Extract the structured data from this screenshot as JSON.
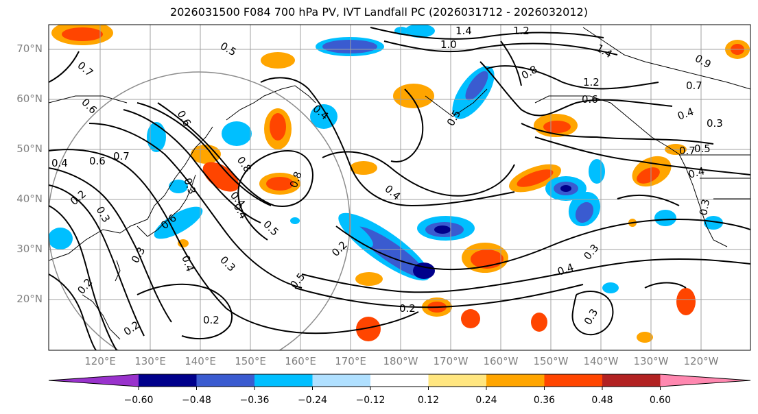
{
  "title": "2026031500 F084 700 hPa PV, IVT Landfall PC (2026031712 - 2026032012)",
  "lat_labels": [
    "70°N",
    "60°N",
    "50°N",
    "40°N",
    "30°N",
    "20°N"
  ],
  "lon_labels": [
    "120°E",
    "130°E",
    "140°E",
    "150°E",
    "160°E",
    "170°E",
    "180°W",
    "170°W",
    "160°W",
    "150°W",
    "140°W",
    "130°W",
    "120°W"
  ],
  "colorbar": {
    "ticks": [
      "−0.60",
      "−0.48",
      "−0.36",
      "−0.24",
      "−0.12",
      "0.12",
      "0.24",
      "0.36",
      "0.48",
      "0.60"
    ],
    "colors": [
      "#9932cc",
      "#00008b",
      "#3a5bd0",
      "#00bfff",
      "#b0e0ff",
      "#ffffff",
      "#ffe680",
      "#ffa500",
      "#ff4500",
      "#b22222",
      "#ff88b0"
    ]
  },
  "contour_labels": [
    "1.4",
    "1.2",
    "1.0",
    "1.4",
    "0.8",
    "0.6",
    "0.7",
    "0.5",
    "0.7",
    "0.9",
    "0.6",
    "0.7",
    "0.8",
    "0.4",
    "0.4",
    "0.4",
    "0.6",
    "0.5",
    "0.3",
    "0.3",
    "0.4",
    "0.3",
    "0.3",
    "0.2",
    "0.2",
    "0.2",
    "0.8",
    "0.3",
    "0.5",
    "0.4",
    "0.4",
    "0.3",
    "0.2",
    "0.2",
    "0.3",
    "0.6",
    "0.2",
    "0.4",
    "0.3",
    "0.5",
    "0.4",
    "1.2",
    "0.6",
    "0.7",
    "0.5",
    "0.4"
  ]
}
